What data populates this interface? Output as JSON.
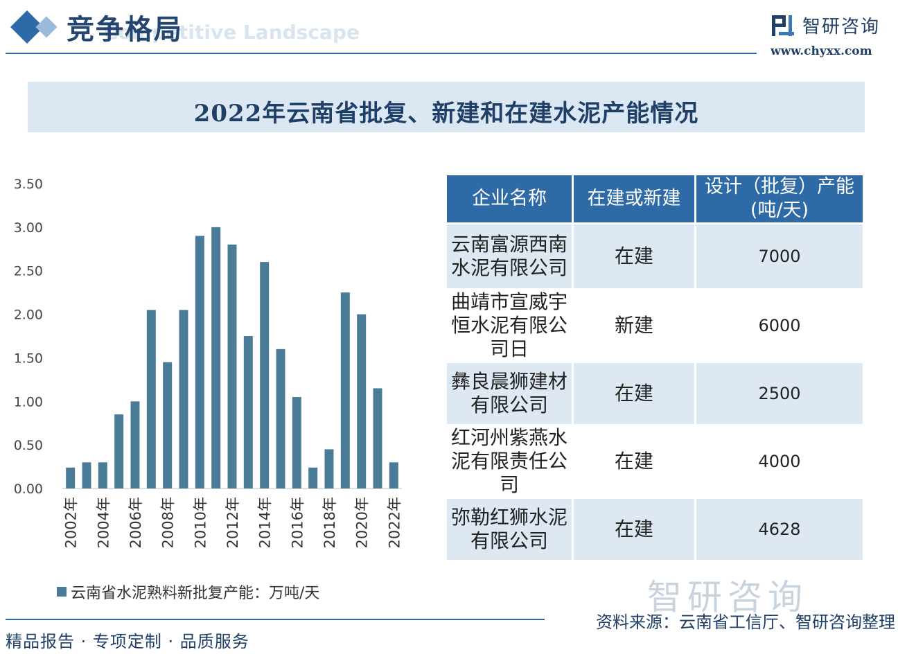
{
  "header": {
    "section_title": "竞争格局",
    "section_subtitle": "Competitive Landscape",
    "logo_name": "智研咨询",
    "logo_url": "www.chyxx.com"
  },
  "title": "2022年云南省批复、新建和在建水泥产能情况",
  "chart_data": {
    "type": "bar",
    "categories": [
      "2002年",
      "2003年",
      "2004年",
      "2005年",
      "2006年",
      "2007年",
      "2008年",
      "2009年",
      "2010年",
      "2011年",
      "2012年",
      "2013年",
      "2014年",
      "2015年",
      "2016年",
      "2017年",
      "2018年",
      "2019年",
      "2020年",
      "2021年",
      "2022年"
    ],
    "tick_labels": [
      "2002年",
      "",
      "2004年",
      "",
      "2006年",
      "",
      "2008年",
      "",
      "2010年",
      "",
      "2012年",
      "",
      "2014年",
      "",
      "2016年",
      "",
      "2018年",
      "",
      "2020年",
      "",
      "2022年"
    ],
    "series": [
      {
        "name": "云南省水泥熟料新批复产能：万吨/天",
        "values": [
          0.24,
          0.3,
          0.3,
          0.85,
          1.0,
          2.05,
          1.45,
          2.05,
          2.9,
          3.0,
          2.8,
          1.75,
          2.6,
          1.6,
          1.05,
          0.24,
          0.45,
          2.25,
          2.0,
          1.15,
          0.3
        ]
      }
    ],
    "ylim": [
      0,
      3.5
    ],
    "yticks": [
      "0.00",
      "0.50",
      "1.00",
      "1.50",
      "2.00",
      "2.50",
      "3.00",
      "3.50"
    ],
    "grid": false,
    "legend_position": "bottom-left",
    "bar_color": "#4a7c97"
  },
  "legend_label": "云南省水泥熟料新批复产能：万吨/天",
  "table": {
    "headers": [
      "企业名称",
      "在建或新建",
      "设计（批复）产能(吨/天)"
    ],
    "header_lines": [
      "企业名称",
      "在建或新建",
      "设计（批复）产能",
      "(吨/天)"
    ],
    "rows": [
      {
        "name_lines": [
          "云南富源西南",
          "水泥有限公司"
        ],
        "status": "在建",
        "capacity": "7000"
      },
      {
        "name_lines": [
          "曲靖市宣威宇",
          "恒水泥有限公",
          "司日"
        ],
        "status": "新建",
        "capacity": "6000"
      },
      {
        "name_lines": [
          "彝良晨狮建材",
          "有限公司"
        ],
        "status": "在建",
        "capacity": "2500"
      },
      {
        "name_lines": [
          "红河州紫燕水",
          "泥有限责任公",
          "司"
        ],
        "status": "在建",
        "capacity": "4000"
      },
      {
        "name_lines": [
          "弥勒红狮水泥",
          "有限公司"
        ],
        "status": "在建",
        "capacity": "4628"
      }
    ]
  },
  "footer": {
    "slogan": "精品报告 · 专项定制 · 品质服务",
    "source": "资料来源：云南省工信厅、智研咨询整理",
    "watermark": "智研咨询"
  },
  "colors": {
    "primary": "#2e6aa6",
    "title_bg": "#dbe7f3",
    "row_alt": "#dde8f3",
    "dark_text": "#1f3f66"
  }
}
